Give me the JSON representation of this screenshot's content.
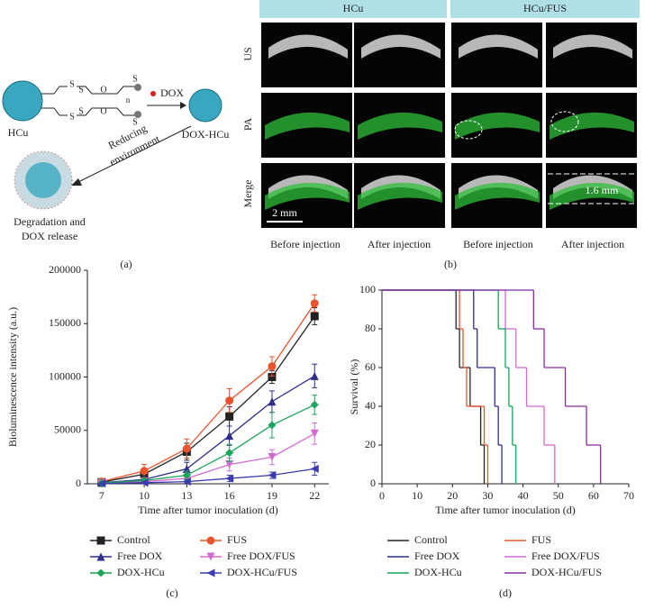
{
  "panel_a": {
    "caption": "(a)",
    "hcu": "HCu",
    "dox": "DOX",
    "dox_hcu": "DOX-HCu",
    "reducing": [
      "Reducing",
      "environment"
    ],
    "release": [
      "Degradation and",
      "DOX release"
    ],
    "atoms": [
      "S",
      "S",
      "S",
      "S",
      "O",
      "O",
      "n",
      "S",
      "S"
    ]
  },
  "panel_b": {
    "caption": "(b)",
    "columns": [
      "HCu",
      "HCu/FUS"
    ],
    "rows": [
      "US",
      "PA",
      "Merge"
    ],
    "scale_bar": "2 mm",
    "thickness": "1.6 mm",
    "bottom": [
      "Before injection",
      "After injection",
      "Before injection",
      "After injection"
    ]
  },
  "chart_data": [
    {
      "type": "line",
      "caption": "(c)",
      "x_label": "Time after tumor inoculation (d)",
      "y_label": "Bioluminescence intensity (a.u.)",
      "x": [
        7,
        10,
        13,
        16,
        19,
        22
      ],
      "xlim": [
        6,
        23
      ],
      "xticks": [
        7,
        10,
        13,
        16,
        19,
        22
      ],
      "ylim": [
        0,
        200000
      ],
      "yticks": [
        0,
        50000,
        100000,
        150000,
        200000
      ],
      "series": [
        {
          "name": "Control",
          "color": "#222222",
          "marker": "square",
          "values": [
            1500,
            9000,
            30000,
            63000,
            100000,
            157000
          ],
          "errors": [
            1000,
            3000,
            8000,
            9000,
            6000,
            8000
          ]
        },
        {
          "name": "FUS",
          "color": "#e8542b",
          "marker": "circle",
          "values": [
            2000,
            12000,
            33000,
            78000,
            110000,
            169000
          ],
          "errors": [
            1200,
            6000,
            9000,
            11000,
            9000,
            8000
          ]
        },
        {
          "name": "Free DOX",
          "color": "#2e2e8f",
          "marker": "triangle-up",
          "values": [
            1000,
            4000,
            14000,
            45000,
            77000,
            101000
          ],
          "errors": [
            800,
            2500,
            6000,
            9000,
            10000,
            11000
          ]
        },
        {
          "name": "Free DOX/FUS",
          "color": "#d36bd3",
          "marker": "triangle-down",
          "values": [
            500,
            2000,
            5000,
            18000,
            25000,
            47000
          ],
          "errors": [
            400,
            1500,
            3000,
            6000,
            7000,
            10000
          ]
        },
        {
          "name": "DOX-HCu",
          "color": "#1aa55a",
          "marker": "diamond",
          "values": [
            800,
            3000,
            8000,
            29000,
            55000,
            74000
          ],
          "errors": [
            600,
            2000,
            4000,
            8000,
            12000,
            9000
          ]
        },
        {
          "name": "DOX-HCu/FUS",
          "color": "#3b3bb0",
          "marker": "triangle-left",
          "values": [
            300,
            1000,
            2000,
            5000,
            8000,
            14000
          ],
          "errors": [
            300,
            800,
            1500,
            3000,
            3000,
            6000
          ]
        }
      ]
    },
    {
      "type": "step",
      "caption": "(d)",
      "x_label": "Time after tumor inoculation (d)",
      "y_label": "Survival (%)",
      "xlim": [
        0,
        70
      ],
      "xticks": [
        0,
        10,
        20,
        30,
        40,
        50,
        60,
        70
      ],
      "ylim": [
        0,
        100
      ],
      "yticks": [
        0,
        20,
        40,
        60,
        80,
        100
      ],
      "series": [
        {
          "name": "Control",
          "color": "#222222",
          "x": [
            0,
            21,
            22,
            25,
            28,
            29
          ],
          "values": [
            100,
            80,
            60,
            40,
            20,
            0
          ]
        },
        {
          "name": "FUS",
          "color": "#e8542b",
          "x": [
            0,
            22,
            23,
            24,
            29,
            30
          ],
          "values": [
            100,
            80,
            60,
            40,
            20,
            0
          ]
        },
        {
          "name": "Free DOX",
          "color": "#2e2e8f",
          "x": [
            0,
            26,
            27,
            32,
            33,
            34
          ],
          "values": [
            100,
            80,
            60,
            40,
            20,
            0
          ]
        },
        {
          "name": "Free DOX/FUS",
          "color": "#d36bd3",
          "x": [
            0,
            35,
            38,
            41,
            46,
            49
          ],
          "values": [
            100,
            80,
            60,
            40,
            20,
            0
          ]
        },
        {
          "name": "DOX-HCu",
          "color": "#1aa55a",
          "x": [
            0,
            33,
            35,
            36,
            37,
            38
          ],
          "values": [
            100,
            80,
            60,
            40,
            20,
            0
          ]
        },
        {
          "name": "DOX-HCu/FUS",
          "color": "#8a2aa0",
          "x": [
            0,
            43,
            46,
            52,
            58,
            62
          ],
          "values": [
            100,
            80,
            60,
            40,
            20,
            0
          ]
        }
      ]
    }
  ]
}
